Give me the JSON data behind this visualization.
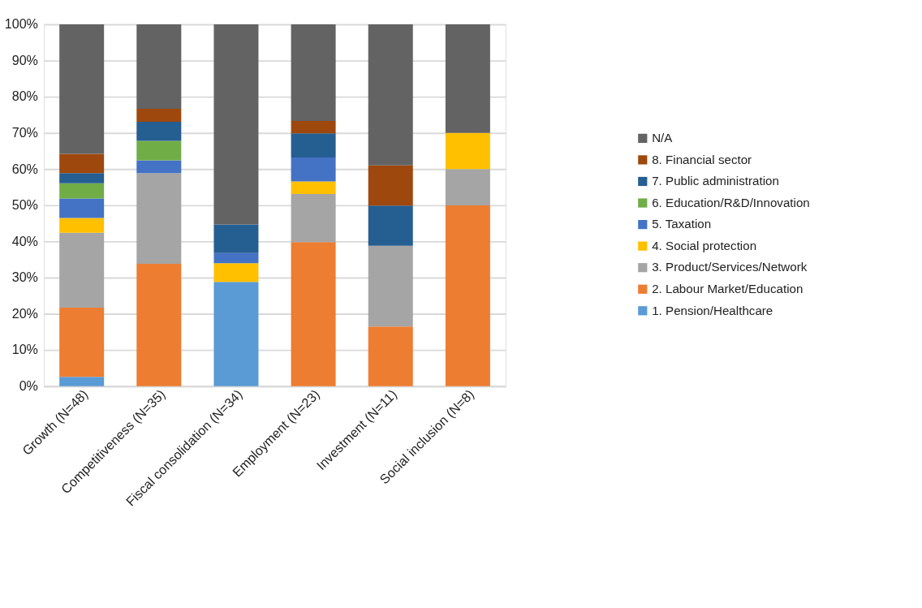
{
  "chart_data": {
    "type": "bar",
    "stacked": true,
    "categories": [
      "Growth (N=48)",
      "Competitiveness (N=35)",
      "Fiscal consolidation (N=34)",
      "Employment (N=23)",
      "Investment (N=11)",
      "Social inclusion (N=8)"
    ],
    "series": [
      {
        "name": "1. Pension/Healthcare",
        "color": "#5b9bd5",
        "values": [
          2.6,
          0,
          28.8,
          0,
          0,
          0
        ]
      },
      {
        "name": "2. Labour Market/Education",
        "color": "#ed7d31",
        "values": [
          19.1,
          33.8,
          0,
          39.8,
          16.5,
          50
        ]
      },
      {
        "name": "3. Product/Services/Network",
        "color": "#a5a5a5",
        "values": [
          20.7,
          25.1,
          0,
          13.3,
          22.3,
          10
        ]
      },
      {
        "name": "4. Social protection",
        "color": "#ffc000",
        "values": [
          4.1,
          0,
          5.2,
          3.5,
          0,
          10
        ]
      },
      {
        "name": "5. Taxation",
        "color": "#4472c4",
        "values": [
          5.4,
          3.5,
          2.8,
          6.6,
          0,
          0
        ]
      },
      {
        "name": "6. Education/R&D/Innovation",
        "color": "#70ad47",
        "values": [
          4.2,
          5.4,
          0,
          0,
          0,
          0
        ]
      },
      {
        "name": "7. Public administration",
        "color": "#255e91",
        "values": [
          2.8,
          5.3,
          7.9,
          6.7,
          11.1,
          0
        ]
      },
      {
        "name": "8. Financial sector",
        "color": "#9e480e",
        "values": [
          5.3,
          3.6,
          0,
          3.4,
          11.1,
          0
        ]
      },
      {
        "name": "N/A",
        "color": "#636363",
        "values": [
          35.8,
          23.3,
          55.3,
          26.7,
          39.0,
          30
        ]
      }
    ],
    "ylim": [
      0,
      100
    ],
    "yticks": [
      {
        "value": 0,
        "label": "0%"
      },
      {
        "value": 10,
        "label": "10%"
      },
      {
        "value": 20,
        "label": "20%"
      },
      {
        "value": 30,
        "label": "30%"
      },
      {
        "value": 40,
        "label": "40%"
      },
      {
        "value": 50,
        "label": "50%"
      },
      {
        "value": 60,
        "label": "60%"
      },
      {
        "value": 70,
        "label": "70%"
      },
      {
        "value": 80,
        "label": "80%"
      },
      {
        "value": 90,
        "label": "90%"
      },
      {
        "value": 100,
        "label": "100%"
      }
    ],
    "grid": "y",
    "legend": "right"
  }
}
